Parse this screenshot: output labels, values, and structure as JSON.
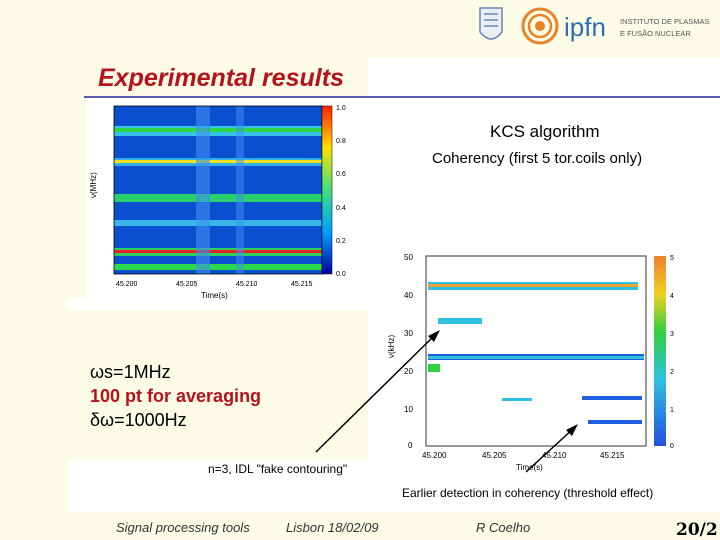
{
  "slide": {
    "title": "Experimental results",
    "algorithm_label": "KCS algorithm",
    "coherency_label": "Coherency (first 5 tor.coils only)",
    "params": {
      "sampling": "ωs=1MHz",
      "averaging": "100 pt for averaging",
      "resolution": "δω=1000Hz"
    },
    "note_contour": "n=3, IDL \"fake contouring\"",
    "note_detection": "Earlier detection in coherency (threshold effect)"
  },
  "logos": {
    "ipfn_text": "ipfn",
    "ipfn_line1": "INSTITUTO DE PLASMAS",
    "ipfn_line2": "E FUSÃO NUCLEAR"
  },
  "plot1": {
    "ylabel": "ν(MHz)",
    "xlabel": "Time(s)",
    "x_ticks": [
      "45.200",
      "45.205",
      "45.210",
      "45.215"
    ],
    "cbar_ticks": [
      "1.0",
      "0.8",
      "0.6",
      "0.4",
      "0.2",
      "0.0"
    ]
  },
  "plot2": {
    "ylabel": "ν(kHz)",
    "xlabel": "Time(s)",
    "y_ticks": [
      "50",
      "40",
      "30",
      "20",
      "10",
      "0"
    ],
    "x_ticks": [
      "45.200",
      "45.205",
      "45.210",
      "45.215"
    ],
    "cbar_ticks": [
      "5",
      "4",
      "3",
      "2",
      "1",
      "0"
    ]
  },
  "footer": {
    "topic": "Signal processing tools",
    "venue": "Lisbon 18/02/09",
    "author": "R Coelho",
    "page": "20/2"
  },
  "colors": {
    "title": "#b5121b",
    "accent_line": "#5b5bb0",
    "background": "#fbfbe6"
  }
}
